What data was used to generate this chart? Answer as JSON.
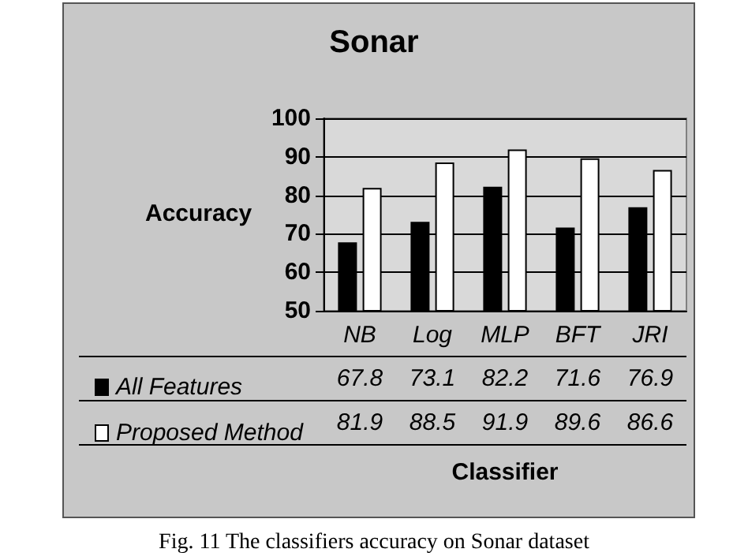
{
  "chart_data": {
    "type": "bar",
    "title": "Sonar",
    "xlabel": "Classifier",
    "ylabel": "Accuracy",
    "categories": [
      "NB",
      "Log",
      "MLP",
      "BFT",
      "JRI"
    ],
    "series": [
      {
        "name": "All Features",
        "color": "#000000",
        "values": [
          67.8,
          73.1,
          82.2,
          71.6,
          76.9
        ]
      },
      {
        "name": "Proposed Method",
        "color": "#ffffff",
        "values": [
          81.9,
          88.5,
          91.9,
          89.6,
          86.6
        ]
      }
    ],
    "ylim": [
      50,
      100
    ],
    "yticks": [
      50,
      60,
      70,
      80,
      90,
      100
    ],
    "grid": "y",
    "legend": "bottom",
    "data_labels": true,
    "annotations": [
      "Fig. 11 The classifiers accuracy on Sonar dataset"
    ]
  }
}
